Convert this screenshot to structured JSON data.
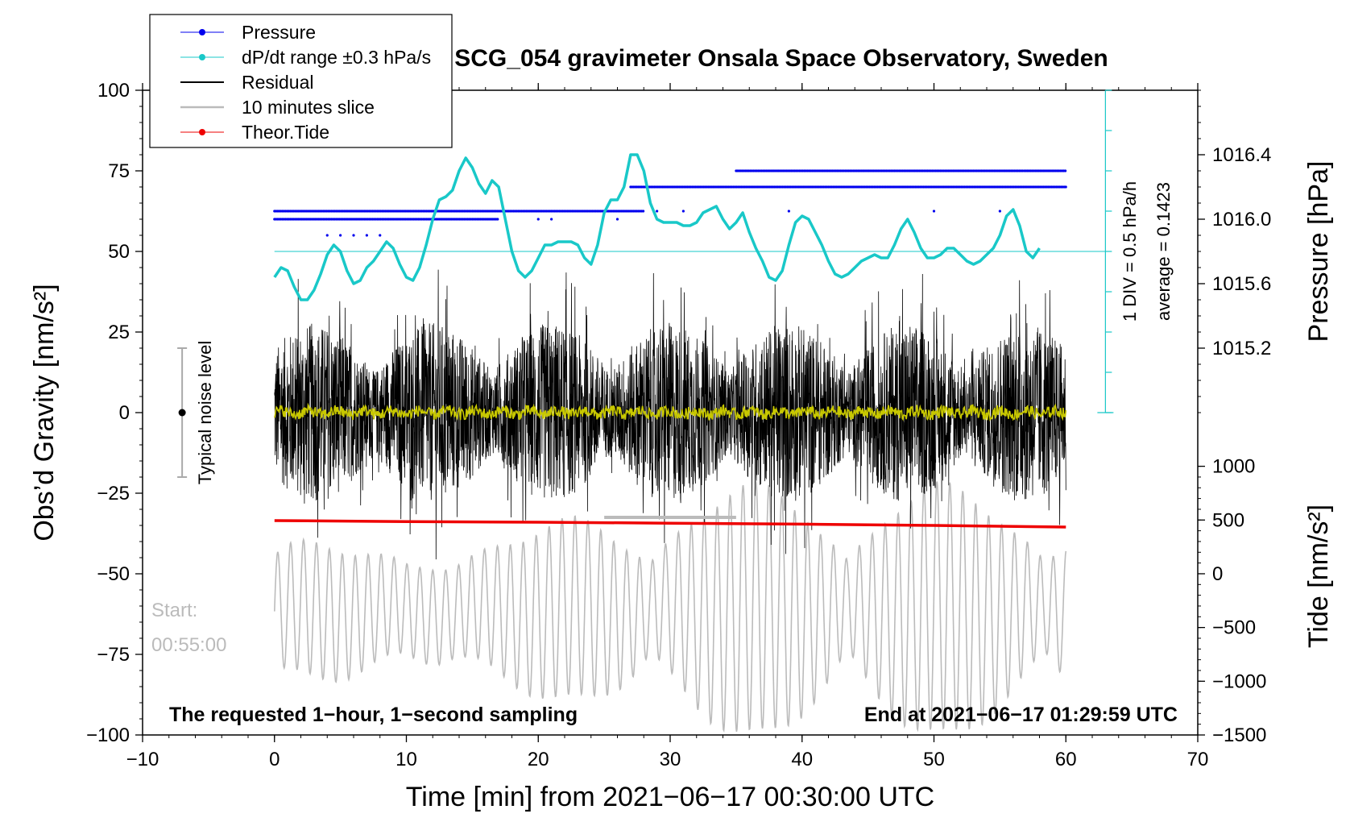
{
  "chart_data": {
    "type": "line",
    "title": "SCG_054 gravimeter Onsala Space Observatory, Sweden",
    "xlabel": "Time [min] from 2021−06−17 00:30:00 UTC",
    "ylabel_left": "Obs’d Gravity [nm/s²]",
    "ylabel_right_pressure": "Pressure [hPa]",
    "ylabel_right_tide": "Tide [nm/s²]",
    "xlim": [
      -10,
      70
    ],
    "ylim": [
      -100,
      100
    ],
    "x_ticks": [
      -10,
      0,
      10,
      20,
      30,
      40,
      50,
      60,
      70
    ],
    "x_tick_labels": [
      "−10",
      "0",
      "10",
      "20",
      "30",
      "40",
      "50",
      "60",
      "70"
    ],
    "y_ticks": [
      -100,
      -75,
      -50,
      -25,
      0,
      25,
      50,
      75,
      100
    ],
    "y_tick_labels": [
      "−100",
      "−75",
      "−50",
      "−25",
      "0",
      "25",
      "50",
      "75",
      "100"
    ],
    "pressure_axis": {
      "ticks": [
        1015.2,
        1015.6,
        1016.0,
        1016.4
      ],
      "tick_labels": [
        "1015.2",
        "1015.6",
        "1016.0",
        "1016.4"
      ],
      "gravity_at_1015_2": 20,
      "gravity_per_0_4_hpa": 20
    },
    "tide_axis": {
      "ticks": [
        -1500,
        -1000,
        -500,
        0,
        500,
        1000
      ],
      "tick_labels": [
        "−1500",
        "−1000",
        "−500",
        "0",
        "500",
        "1000"
      ],
      "gravity_at_minus_1500": -100,
      "gravity_per_500": 16.67
    },
    "legend": {
      "placement": "top-left",
      "entries": [
        {
          "label": "Pressure",
          "color": "#0000ee",
          "marker": "dot"
        },
        {
          "label": "dP/dt range ±0.3 hPa/s",
          "color": "#19c8c8",
          "marker": "dot"
        },
        {
          "label": "Residual",
          "color": "#000000",
          "marker": "none"
        },
        {
          "label": "10 minutes slice",
          "color": "#bbbbbb",
          "marker": "none"
        },
        {
          "label": "Theor.Tide",
          "color": "#ee0000",
          "marker": "dot"
        }
      ]
    },
    "series": [
      {
        "name": "Pressure (dP/dt trace)",
        "color": "#19c8c8",
        "x": [
          0,
          0.5,
          1,
          1.5,
          2,
          2.5,
          3,
          3.5,
          4,
          4.5,
          5,
          5.5,
          6,
          6.5,
          7,
          7.5,
          8,
          8.5,
          9,
          9.5,
          10,
          10.5,
          11,
          11.5,
          12,
          12.5,
          13,
          13.5,
          14,
          14.5,
          15,
          15.5,
          16,
          16.5,
          17,
          17.5,
          18,
          18.5,
          19,
          19.5,
          20,
          20.5,
          21,
          21.5,
          22,
          22.5,
          23,
          23.5,
          24,
          24.5,
          25,
          25.5,
          26,
          26.5,
          27,
          27.5,
          28,
          28.5,
          29,
          29.5,
          30,
          30.5,
          31,
          31.5,
          32,
          32.5,
          33,
          33.5,
          34,
          34.5,
          35,
          35.5,
          36,
          36.5,
          37,
          37.5,
          38,
          38.5,
          39,
          39.5,
          40,
          40.5,
          41,
          41.5,
          42,
          42.5,
          43,
          43.5,
          44,
          44.5,
          45,
          45.5,
          46,
          46.5,
          47,
          47.5,
          48,
          48.5,
          49,
          49.5,
          50,
          50.5,
          51,
          51.5,
          52,
          52.5,
          53,
          53.5,
          54,
          54.5,
          55,
          55.5,
          56,
          56.5,
          57,
          57.5,
          58
        ],
        "y": [
          42,
          45,
          44,
          39,
          35,
          35,
          38,
          43,
          49,
          52,
          50,
          44,
          40,
          41,
          45,
          47,
          50,
          53,
          51,
          46,
          42,
          41,
          45,
          52,
          60,
          66,
          67,
          69,
          75,
          79,
          76,
          71,
          68,
          72,
          70,
          60,
          50,
          44,
          42,
          44,
          48,
          52,
          52,
          53,
          53,
          53,
          52,
          48,
          46,
          52,
          62,
          66,
          66,
          70,
          80,
          80,
          75,
          65,
          60,
          59,
          59,
          59,
          58,
          58,
          59,
          62,
          63,
          64,
          60,
          57,
          59,
          62,
          56,
          51,
          47,
          42,
          41,
          44,
          52,
          59,
          61,
          60,
          56,
          52,
          47,
          43,
          42,
          43,
          45,
          47,
          48,
          49,
          48,
          48,
          52,
          57,
          60,
          56,
          51,
          48,
          48,
          49,
          51,
          51,
          49,
          47,
          46,
          47,
          49,
          51,
          55,
          61,
          63,
          58,
          50,
          48,
          51
        ]
      },
      {
        "name": "Pressure (hPa, dots)",
        "color": "#0000ee",
        "levels_hpa": [
          1015.9,
          1015.95,
          1016.0,
          1016.05,
          1016.1,
          1016.15,
          1016.2
        ],
        "segments": [
          {
            "x_start": 0,
            "x_end": 28,
            "level_hpa": 1016.05
          },
          {
            "x_start": 0,
            "x_end": 17,
            "level_hpa": 1016.0
          },
          {
            "x_start": 27,
            "x_end": 60,
            "level_hpa": 1016.2
          },
          {
            "x_start": 35,
            "x_end": 60,
            "level_hpa": 1016.3
          }
        ]
      },
      {
        "name": "Residual",
        "color": "#000000",
        "x_range": [
          0,
          60
        ],
        "amplitude_nm_s2": 40,
        "center": 0
      },
      {
        "name": "Residual (smoothed)",
        "color": "#c8c800",
        "x_range": [
          0,
          60
        ],
        "center": 0
      },
      {
        "name": "Theor.Tide",
        "color": "#ee0000",
        "x": [
          0,
          10,
          20,
          30,
          40,
          50,
          60
        ],
        "y": [
          -33.5,
          -33.8,
          -34.0,
          -34.3,
          -34.6,
          -35.0,
          -35.5
        ]
      },
      {
        "name": "10 minutes slice",
        "color": "#bbbbbb",
        "x_range": [
          0,
          60
        ],
        "tide_amplitude_nm_s2": 1200
      },
      {
        "name": "10 minutes slice (window)",
        "color": "#bbbbbb",
        "x": [
          25,
          35
        ],
        "y": [
          -32.5,
          -32.5
        ]
      }
    ],
    "annotations": {
      "noise_label": "Typical noise level",
      "noise_bar": {
        "x": -7,
        "y_low": -20,
        "y_high": 20,
        "center": 0
      },
      "start_label": "Start:",
      "start_time": "00:55:00",
      "bottom_left_note": "The requested 1−hour, 1−second sampling",
      "bottom_right_note": "End at 2021−06−17 01:29:59 UTC",
      "scale_div_label": "1 DIV = 0.5 hPa/h",
      "scale_avg_label": "average = 0.1423",
      "reference_line_y": 50,
      "scale_bar_x": 63
    }
  }
}
